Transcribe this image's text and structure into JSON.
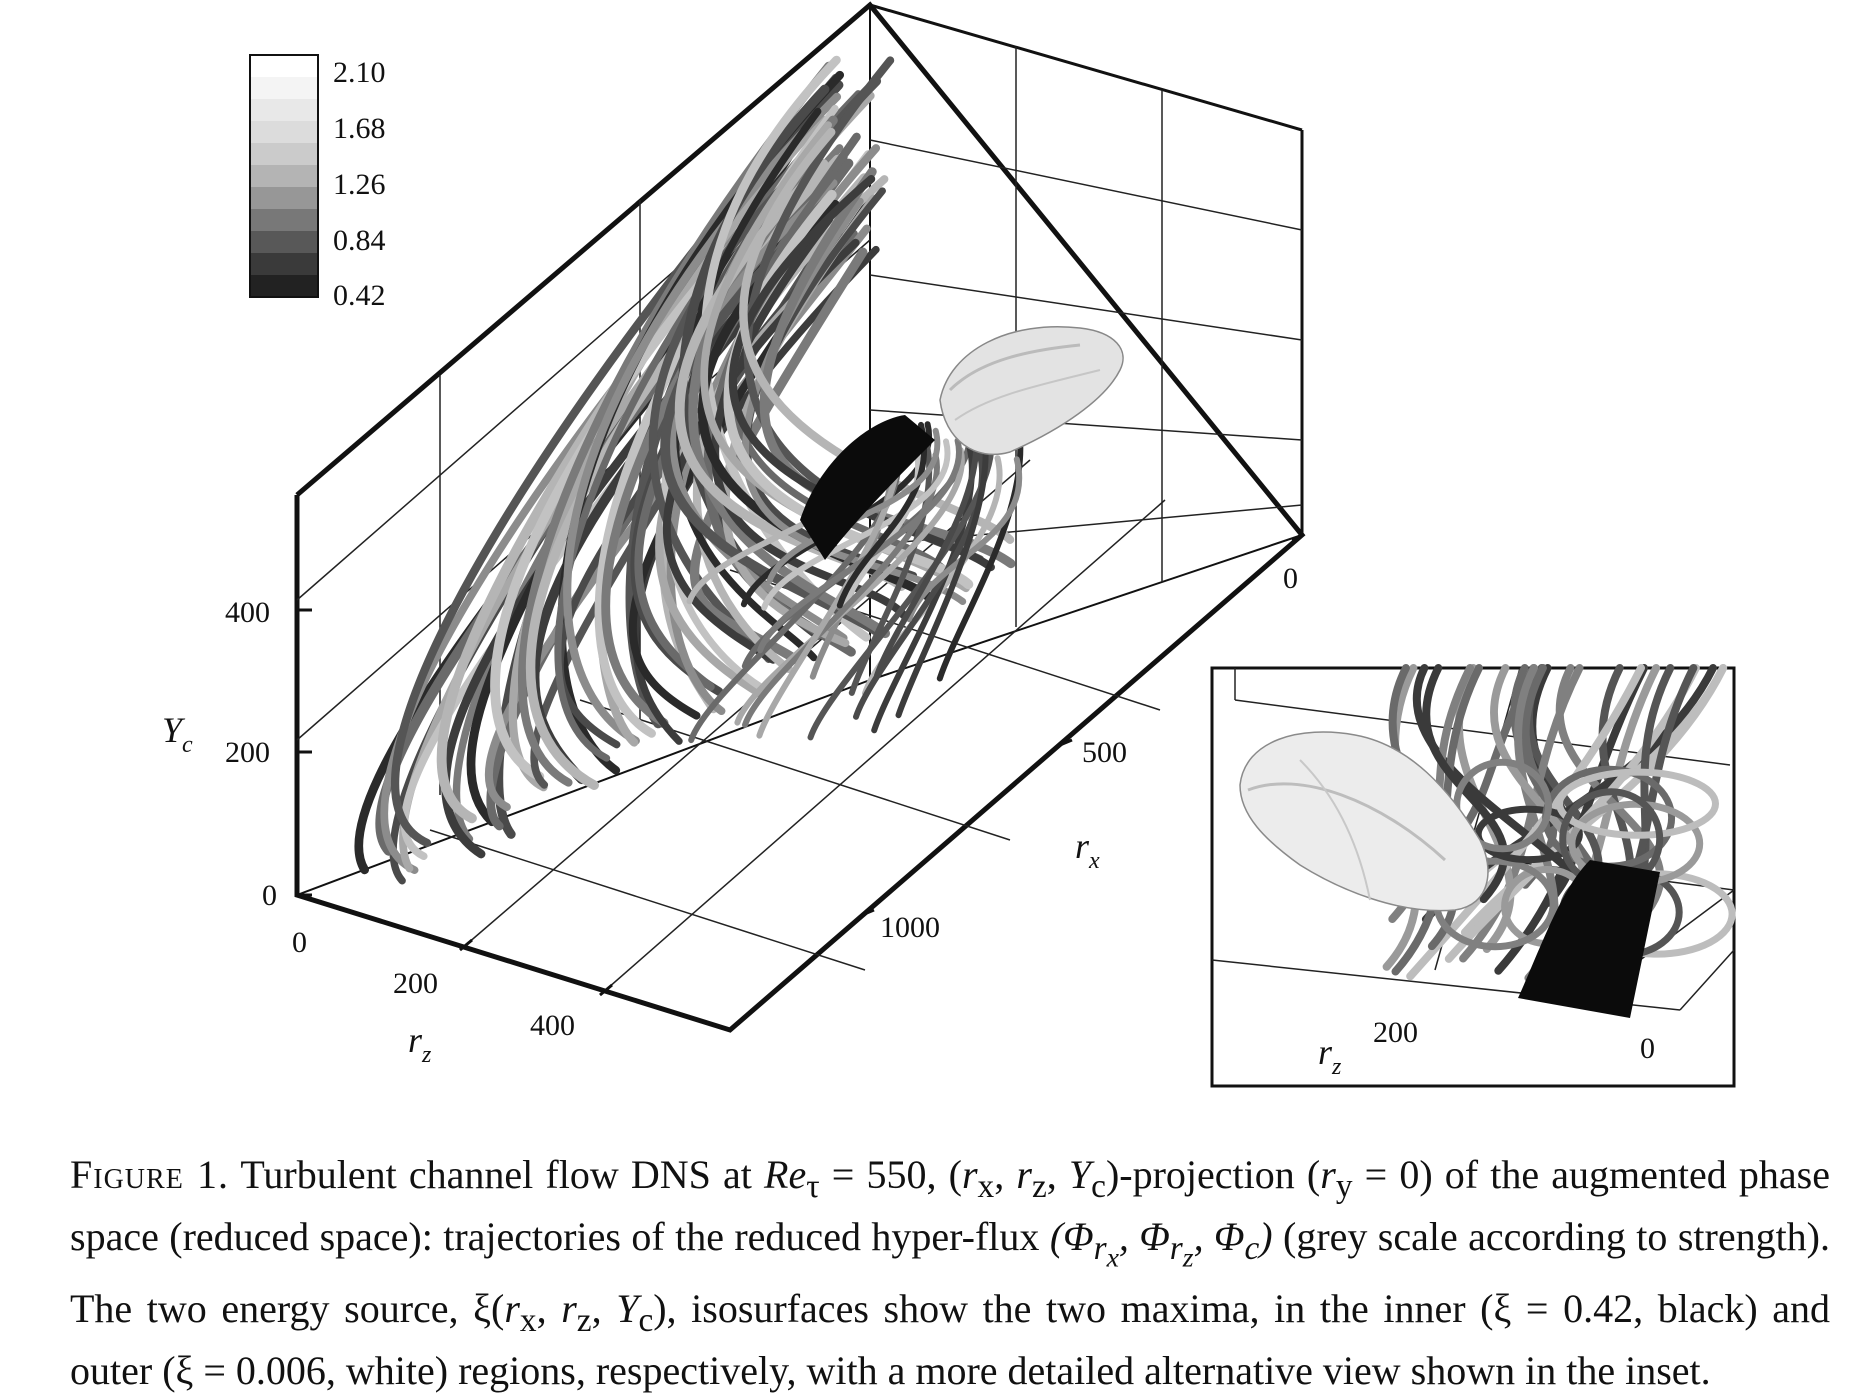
{
  "colorbar": {
    "ticks": [
      "2.10",
      "1.68",
      "1.26",
      "0.84",
      "0.42"
    ],
    "levels": [
      "#ffffff",
      "#f4f4f4",
      "#e8e8e8",
      "#dcdcdc",
      "#cbcbcb",
      "#b4b4b4",
      "#979797",
      "#787878",
      "#585858",
      "#3a3a3a",
      "#222222"
    ]
  },
  "axes": {
    "yc_label": "Y",
    "yc_sub": "c",
    "yc_ticks": [
      "400",
      "200",
      "0"
    ],
    "rz_label": "r",
    "rz_sub": "z",
    "rz_ticks": [
      "0",
      "200",
      "400"
    ],
    "rx_label": "r",
    "rx_sub": "x",
    "rx_ticks": [
      "0",
      "500",
      "1000"
    ]
  },
  "inset": {
    "rz_label": "r",
    "rz_sub": "z",
    "ticks": [
      "200",
      "0"
    ]
  },
  "caption": {
    "label": "Figure 1.",
    "part1": " Turbulent channel flow DNS at ",
    "re": "Re",
    "re_sub": "τ",
    "part2": " = 550, (",
    "part3": ")-projection (",
    "part4": " = 0) of the augmented phase space (reduced space): trajectories of the reduced hyper-flux ",
    "phi": "(Φ",
    "part5": "(grey scale according to strength). The two energy source, ξ(",
    "part6": "), isosurfaces show the two maxima, in the inner (ξ = 0.42, black) and outer (ξ = 0.006, white) regions, respectively, with a more detailed alternative view shown in the inset."
  }
}
